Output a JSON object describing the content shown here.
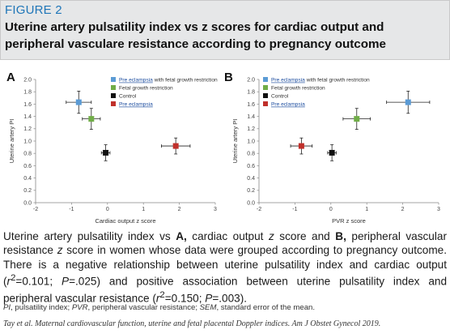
{
  "figure": {
    "label": "FIGURE 2",
    "title": "Uterine artery pulsatility index vs z scores for cardiac output and peripheral vasculare resistance according to pregnancy outcome"
  },
  "chart_data": [
    {
      "type": "scatter",
      "panel": "A",
      "xlabel": "Cardiac output z score",
      "ylabel": "Uterine artery PI",
      "xlim": [
        -2,
        3
      ],
      "ylim": [
        0,
        2
      ],
      "xticks": [
        "-2",
        "-1",
        "0",
        "1",
        "2",
        "3"
      ],
      "yticks": [
        "0.0",
        "0.2",
        "0.4",
        "0.6",
        "0.8",
        "1.0",
        "1.2",
        "1.4",
        "1.6",
        "1.8",
        "2.0"
      ],
      "grid": false,
      "legend_position": "top-right",
      "series": [
        {
          "name": "Pre eclampsia with fetal growth restriction",
          "color": "#5b9bd5",
          "x": -0.8,
          "y": 1.63,
          "xerr": 0.35,
          "yerr": 0.18
        },
        {
          "name": "Fetal growth restriction",
          "color": "#70ad47",
          "x": -0.45,
          "y": 1.36,
          "xerr": 0.25,
          "yerr": 0.17
        },
        {
          "name": "Control",
          "color": "#111111",
          "x": -0.05,
          "y": 0.81,
          "xerr": 0.12,
          "yerr": 0.13
        },
        {
          "name": "Pre eclampsia",
          "color": "#c0302b",
          "x": 1.9,
          "y": 0.92,
          "xerr": 0.4,
          "yerr": 0.13
        }
      ]
    },
    {
      "type": "scatter",
      "panel": "B",
      "xlabel": "PVR z score",
      "ylabel": "Uterine artery PI",
      "xlim": [
        -2,
        3
      ],
      "ylim": [
        0,
        2
      ],
      "xticks": [
        "-2",
        "-1",
        "0",
        "1",
        "2",
        "3"
      ],
      "yticks": [
        "0.0",
        "0.2",
        "0.4",
        "0.6",
        "0.8",
        "1.0",
        "1.2",
        "1.4",
        "1.6",
        "1.8",
        "2.0"
      ],
      "grid": false,
      "legend_position": "top-left",
      "series": [
        {
          "name": "Pre eclampsia with fetal growth restriction",
          "color": "#5b9bd5",
          "x": 2.15,
          "y": 1.63,
          "xerr": 0.6,
          "yerr": 0.18
        },
        {
          "name": "Fetal growth restriction",
          "color": "#70ad47",
          "x": 0.72,
          "y": 1.36,
          "xerr": 0.38,
          "yerr": 0.17
        },
        {
          "name": "Control",
          "color": "#111111",
          "x": 0.03,
          "y": 0.81,
          "xerr": 0.12,
          "yerr": 0.13
        },
        {
          "name": "Pre eclampsia",
          "color": "#c0302b",
          "x": -0.82,
          "y": 0.92,
          "xerr": 0.3,
          "yerr": 0.13
        }
      ]
    }
  ],
  "caption": {
    "p1": "Uterine artery pulsatility index vs ",
    "bold_a": "A,",
    "p2": " cardiac output ",
    "z1": "z",
    "p3": " score and ",
    "bold_b": "B,",
    "p4": " peripheral vascular resistance ",
    "z2": "z",
    "p5": " score in women whose data were grouped according to pregnancy outcome. There is a negative relationship between uterine pulsatility index and cardiac output (",
    "r1": "r",
    "r1_sup": "2",
    "p6": "=0.101; ",
    "p_label1": "P",
    "p7": "=.025) and positive association between uterine pulsatility index and peripheral vascular resistance (",
    "r2": "r",
    "r2_sup": "2",
    "p8": "=0.150; ",
    "p_label2": "P",
    "p9": "=.003)."
  },
  "abbreviations": {
    "pi": "PI",
    "pi_def": ", pulsatility index; ",
    "pvr": "PVR",
    "pvr_def": ", peripheral vascular resistance; ",
    "sem": "SEM",
    "sem_def": ", standard error of the mean."
  },
  "citation": "Tay et al. Maternal cardiovascular function, uterine and fetal placental Doppler indices. Am J Obstet Gynecol 2019."
}
